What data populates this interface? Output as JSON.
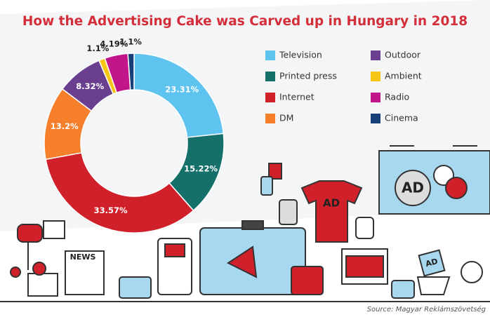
{
  "chart_data": {
    "type": "donut",
    "title": "How the Advertising Cake was Carved up in Hungary in 2018",
    "categories": [
      "Television",
      "Printed press",
      "Internet",
      "DM",
      "Outdoor",
      "Ambient",
      "Radio",
      "Cinema"
    ],
    "values": [
      23.31,
      15.22,
      33.57,
      13.2,
      8.32,
      1.1,
      4.19,
      1.1
    ],
    "value_labels": [
      "23.31%",
      "15.22%",
      "33.57%",
      "13.2%",
      "8.32%",
      "1.1%",
      "4.19%",
      "1.1%"
    ],
    "colors": [
      "#5ec3ef",
      "#16706a",
      "#d0202a",
      "#f57f2a",
      "#6a3f8f",
      "#f6c515",
      "#c0168a",
      "#173f7a"
    ],
    "source": "Source: Magyar Reklámszövetség",
    "illustration_labels": [
      "NEWS",
      "AD",
      "AD",
      "AD"
    ]
  }
}
